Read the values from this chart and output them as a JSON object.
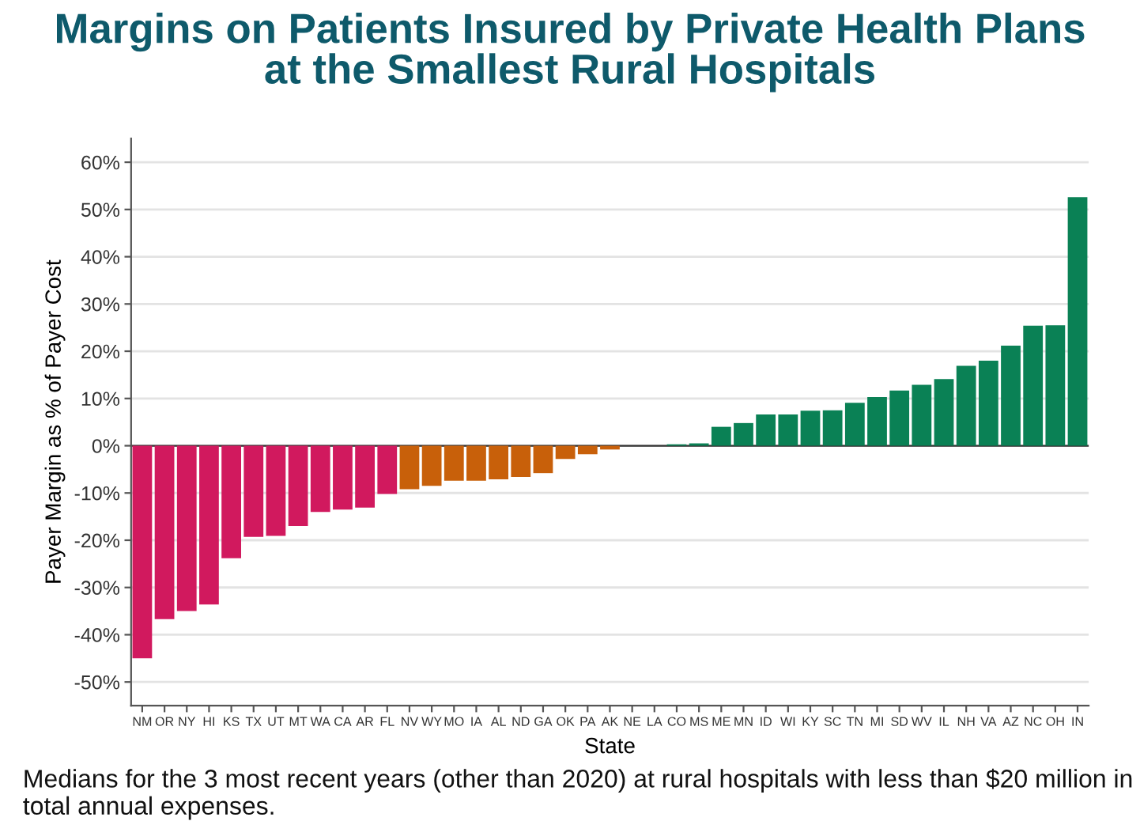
{
  "chart_data": {
    "type": "bar",
    "title": "Margins on Patients Insured by Private Health Plans\nat the Smallest Rural Hospitals",
    "xlabel": "State",
    "ylabel": "Payer Margin as % of Payer Cost",
    "categories": [
      "NM",
      "OR",
      "NY",
      "HI",
      "KS",
      "TX",
      "UT",
      "MT",
      "WA",
      "CA",
      "AR",
      "FL",
      "NV",
      "WY",
      "MO",
      "IA",
      "AL",
      "ND",
      "GA",
      "OK",
      "PA",
      "AK",
      "NE",
      "LA",
      "CO",
      "MS",
      "ME",
      "MN",
      "ID",
      "WI",
      "KY",
      "SC",
      "TN",
      "MI",
      "SD",
      "WV",
      "IL",
      "NH",
      "VA",
      "AZ",
      "NC",
      "OH",
      "IN"
    ],
    "values": [
      -45,
      -36.7,
      -35,
      -33.6,
      -23.8,
      -19.3,
      -19.1,
      -17,
      -14,
      -13.5,
      -13.1,
      -10.2,
      -9.2,
      -8.5,
      -7.4,
      -7.4,
      -7.1,
      -6.6,
      -5.8,
      -2.8,
      -1.8,
      -0.8,
      0,
      0,
      0.3,
      0.5,
      4.0,
      4.8,
      6.6,
      6.6,
      7.4,
      7.5,
      9.1,
      10.3,
      11.7,
      12.9,
      14.1,
      16.9,
      18.0,
      21.2,
      25.4,
      25.5,
      52.6
    ],
    "colors": [
      "#d1195e",
      "#d1195e",
      "#d1195e",
      "#d1195e",
      "#d1195e",
      "#d1195e",
      "#d1195e",
      "#d1195e",
      "#d1195e",
      "#d1195e",
      "#d1195e",
      "#d1195e",
      "#c8600a",
      "#c8600a",
      "#c8600a",
      "#c8600a",
      "#c8600a",
      "#c8600a",
      "#c8600a",
      "#c8600a",
      "#c8600a",
      "#c8600a",
      "#c8600a",
      "#0a8155",
      "#0a8155",
      "#0a8155",
      "#0a8155",
      "#0a8155",
      "#0a8155",
      "#0a8155",
      "#0a8155",
      "#0a8155",
      "#0a8155",
      "#0a8155",
      "#0a8155",
      "#0a8155",
      "#0a8155",
      "#0a8155",
      "#0a8155",
      "#0a8155",
      "#0a8155",
      "#0a8155",
      "#0a8155"
    ],
    "ylim": [
      -55,
      65
    ],
    "yticks": [
      {
        "value": -50,
        "label": "-50%"
      },
      {
        "value": -40,
        "label": "-40%"
      },
      {
        "value": -30,
        "label": "-30%"
      },
      {
        "value": -20,
        "label": "-20%"
      },
      {
        "value": -10,
        "label": "-10%"
      },
      {
        "value": 0,
        "label": "0%"
      },
      {
        "value": 10,
        "label": "10%"
      },
      {
        "value": 20,
        "label": "20%"
      },
      {
        "value": 30,
        "label": "30%"
      },
      {
        "value": 40,
        "label": "40%"
      },
      {
        "value": 50,
        "label": "50%"
      },
      {
        "value": 60,
        "label": "60%"
      }
    ],
    "grid": "y",
    "annotations": [
      "Medians for the 3 most recent years (other than 2020) at rural hospitals with less than $20 million in total annual expenses."
    ]
  }
}
